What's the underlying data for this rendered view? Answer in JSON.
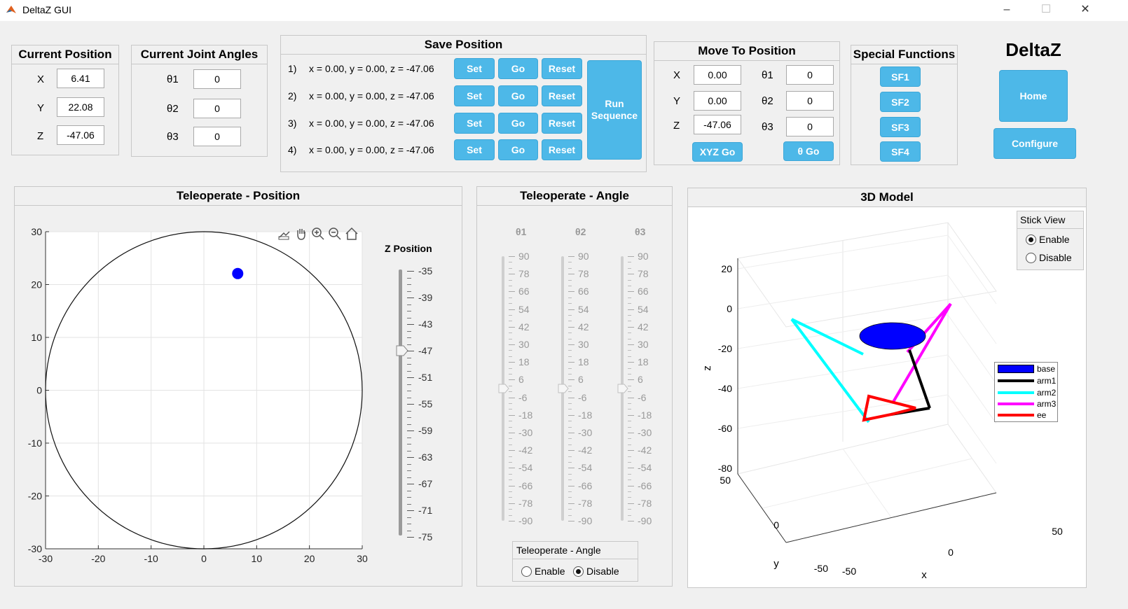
{
  "window": {
    "title": "DeltaZ GUI",
    "controls": [
      "–",
      "☐",
      "✕"
    ]
  },
  "current_position": {
    "title": "Current Position",
    "rows": [
      {
        "label": "X",
        "value": "6.41"
      },
      {
        "label": "Y",
        "value": "22.08"
      },
      {
        "label": "Z",
        "value": "-47.06"
      }
    ]
  },
  "current_joint_angles": {
    "title": "Current Joint Angles",
    "rows": [
      {
        "label": "θ1",
        "value": "0"
      },
      {
        "label": "θ2",
        "value": "0"
      },
      {
        "label": "θ3",
        "value": "0"
      }
    ]
  },
  "save_position": {
    "title": "Save Position",
    "rows": [
      {
        "index": "1)",
        "text": "x = 0.00, y = 0.00, z = -47.06"
      },
      {
        "index": "2)",
        "text": "x = 0.00, y = 0.00, z = -47.06"
      },
      {
        "index": "3)",
        "text": "x = 0.00, y = 0.00, z = -47.06"
      },
      {
        "index": "4)",
        "text": "x = 0.00, y = 0.00, z = -47.06"
      }
    ],
    "set_label": "Set",
    "go_label": "Go",
    "reset_label": "Reset",
    "run_line1": "Run",
    "run_line2": "Sequence"
  },
  "move_to_position": {
    "title": "Move To Position",
    "xyz": [
      {
        "label": "X",
        "value": "0.00"
      },
      {
        "label": "Y",
        "value": "0.00"
      },
      {
        "label": "Z",
        "value": "-47.06"
      }
    ],
    "theta": [
      {
        "label": "θ1",
        "value": "0"
      },
      {
        "label": "θ2",
        "value": "0"
      },
      {
        "label": "θ3",
        "value": "0"
      }
    ],
    "xyz_go": "XYZ Go",
    "theta_go": "θ Go"
  },
  "special_functions": {
    "title": "Special Functions",
    "buttons": [
      "SF1",
      "SF2",
      "SF3",
      "SF4"
    ]
  },
  "brand": {
    "title": "DeltaZ",
    "home": "Home",
    "configure": "Configure"
  },
  "teleop_position": {
    "title": "Teleoperate - Position",
    "toolbar_icons": [
      "export-icon",
      "pan-hand-icon",
      "zoom-in-icon",
      "zoom-out-icon",
      "home-icon"
    ],
    "z_label": "Z Position",
    "z_ticks": [
      "-35",
      "-39",
      "-43",
      "-47",
      "-51",
      "-55",
      "-59",
      "-63",
      "-67",
      "-71",
      "-75"
    ],
    "z_value": -47
  },
  "teleop_angle": {
    "title": "Teleoperate - Angle",
    "sliders": [
      {
        "label": "θ1",
        "value": 0
      },
      {
        "label": "θ2",
        "value": 0
      },
      {
        "label": "θ3",
        "value": 0
      }
    ],
    "ticks": [
      "90",
      "78",
      "66",
      "54",
      "42",
      "30",
      "18",
      "6",
      "-6",
      "-18",
      "-30",
      "-42",
      "-54",
      "-66",
      "-78",
      "-90"
    ],
    "group_title": "Teleoperate - Angle",
    "enable": "Enable",
    "disable": "Disable",
    "selected": "Disable"
  },
  "model3d": {
    "title": "3D Model",
    "stick_view": {
      "title": "Stick View",
      "enable": "Enable",
      "disable": "Disable",
      "selected": "Enable"
    },
    "z_ticks": [
      "20",
      "0",
      "-20",
      "-40",
      "-60",
      "-80"
    ],
    "y_ticks": [
      "50",
      "0",
      "-50"
    ],
    "x_ticks": [
      "-50",
      "0",
      "50"
    ],
    "xlabel": "x",
    "ylabel": "y",
    "zlabel": "z",
    "legend": [
      {
        "name": "base",
        "color": "#0000ff"
      },
      {
        "name": "arm1",
        "color": "#000000"
      },
      {
        "name": "arm2",
        "color": "#00ffff"
      },
      {
        "name": "arm3",
        "color": "#ff00ff"
      },
      {
        "name": "ee",
        "color": "#ff0000"
      }
    ]
  },
  "chart_data": {
    "type": "scatter",
    "xlim": [
      -30,
      30
    ],
    "ylim": [
      -30,
      30
    ],
    "xticks": [
      -30,
      -20,
      -10,
      0,
      10,
      20,
      30
    ],
    "yticks": [
      -30,
      -20,
      -10,
      0,
      10,
      20,
      30
    ],
    "grid": true,
    "workspace_circle_radius": 30,
    "points": [
      {
        "x": 6.41,
        "y": 22.08,
        "color": "#0000ff"
      }
    ]
  }
}
